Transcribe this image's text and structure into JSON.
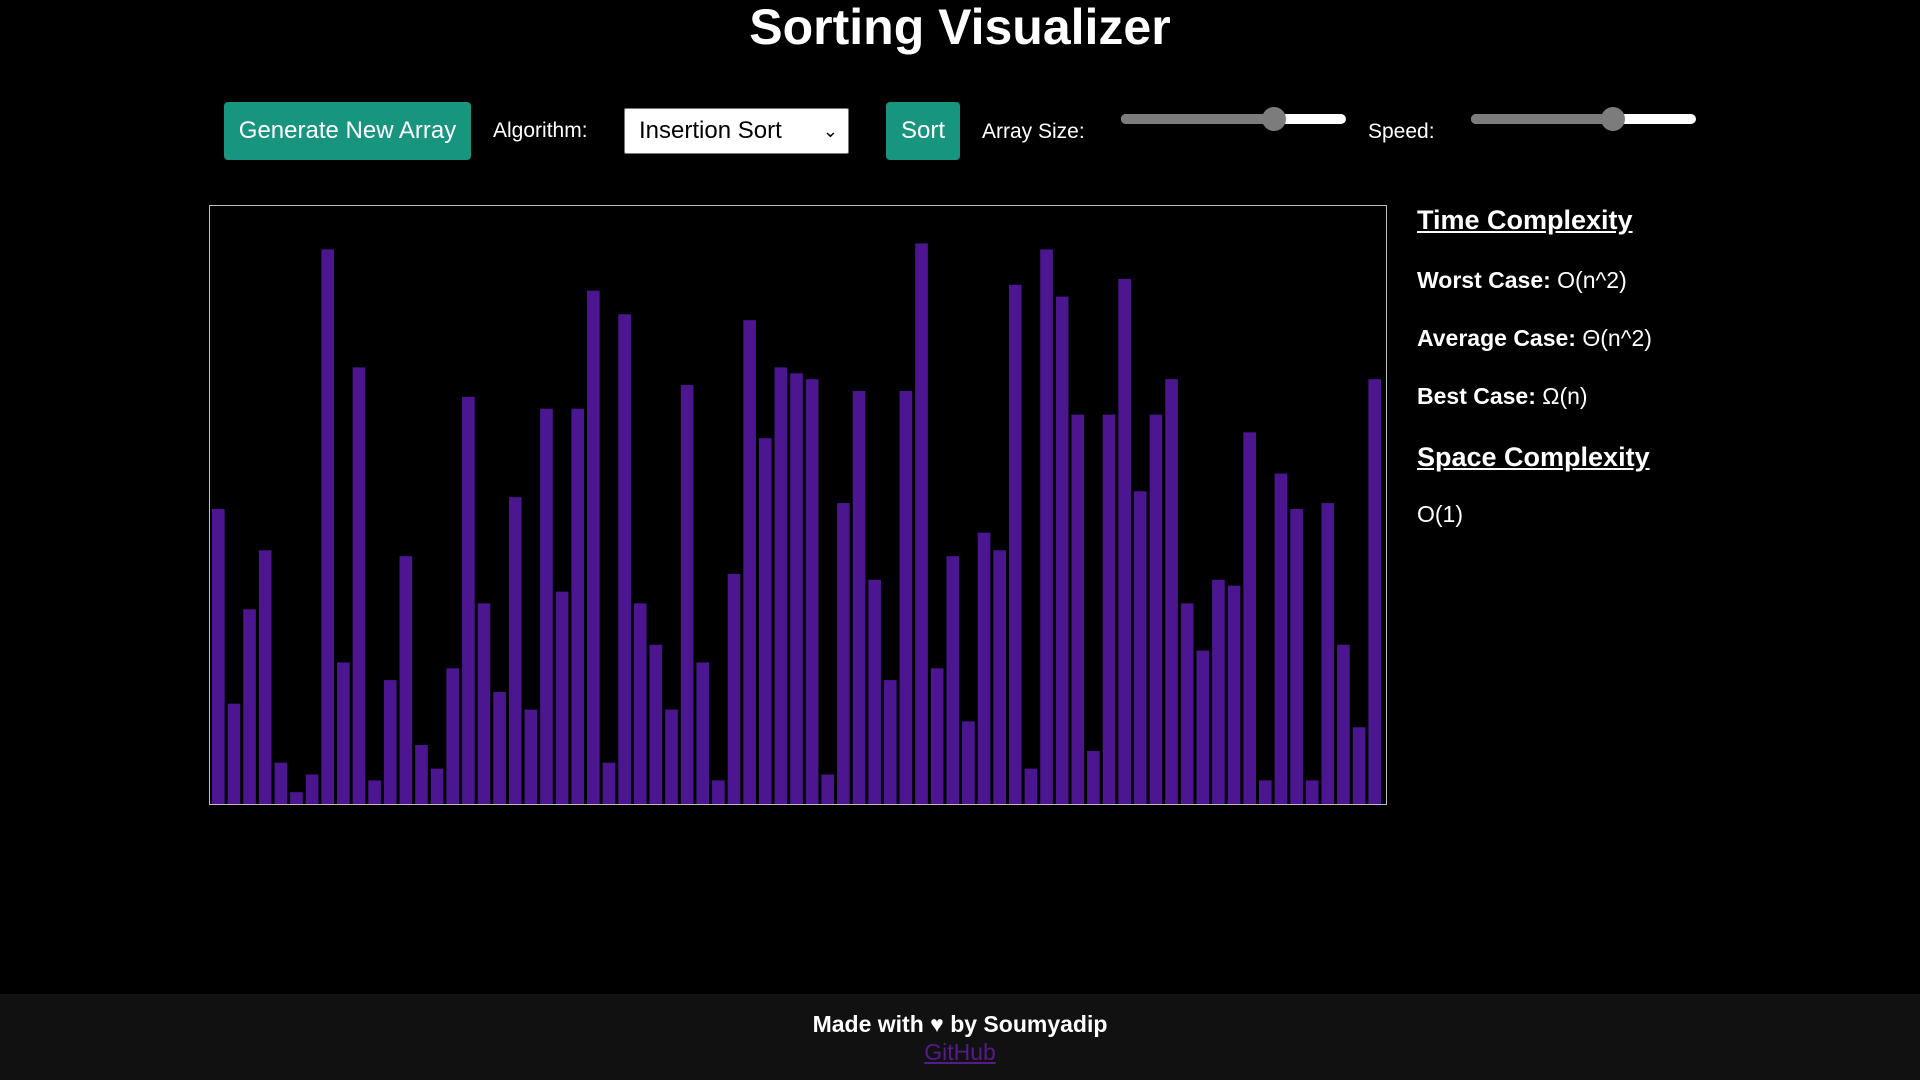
{
  "header": {
    "title": "Sorting Visualizer"
  },
  "controls": {
    "generate_label": "Generate New Array",
    "algorithm_label": "Algorithm:",
    "algorithm_selected": "Insertion Sort",
    "sort_label": "Sort",
    "array_size_label": "Array Size:",
    "array_size_fraction": 0.68,
    "speed_label": "Speed:",
    "speed_fraction": 0.63
  },
  "colors": {
    "bar": "#4b168f",
    "button": "#17957f",
    "slider_thumb": "#7c7c7c",
    "link": "#551a8b"
  },
  "complexity": {
    "time_heading": "Time Complexity",
    "worst_label": "Worst Case:",
    "worst_value": "O(n^2)",
    "average_label": "Average Case:",
    "average_value": "Θ(n^2)",
    "best_label": "Best Case:",
    "best_value": "Ω(n)",
    "space_heading": "Space Complexity",
    "space_value": "O(1)"
  },
  "footer": {
    "made_with": "Made with ♥ by Soumyadip",
    "link_label": "GitHub"
  },
  "chart_data": {
    "type": "bar",
    "max": 100,
    "values": [
      50,
      17,
      33,
      43,
      7,
      2,
      5,
      94,
      24,
      74,
      4,
      21,
      42,
      10,
      6,
      23,
      69,
      34,
      19,
      52,
      16,
      67,
      36,
      67,
      87,
      7,
      83,
      34,
      27,
      16,
      71,
      24,
      4,
      39,
      82,
      62,
      74,
      73,
      72,
      5,
      51,
      70,
      38,
      21,
      70,
      95,
      23,
      42,
      14,
      46,
      43,
      88,
      6,
      94,
      86,
      66,
      9,
      66,
      89,
      53,
      66,
      72,
      34,
      26,
      38,
      37,
      63,
      4,
      56,
      50,
      4,
      51,
      27,
      13,
      72
    ]
  }
}
